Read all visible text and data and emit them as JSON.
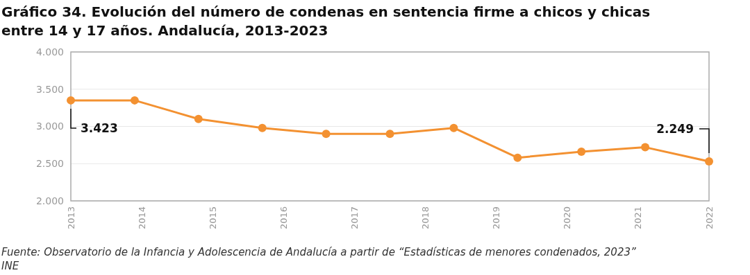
{
  "chart_data": {
    "type": "line",
    "title": "Gráfico 34. Evolución del número de condenas en sentencia firme a chicos y chicas entre 14 y 17 años. Andalucía, 2013-2023",
    "x": [
      2013,
      2013.9,
      2014.8,
      2015.7,
      2016.6,
      2017.5,
      2018.4,
      2019.3,
      2020.2,
      2021.1,
      2022
    ],
    "series": [
      {
        "color": "#f39131",
        "values": [
          3350,
          3350,
          3100,
          2980,
          2900,
          2900,
          2980,
          2580,
          2660,
          2720,
          2530
        ]
      }
    ],
    "xlim": [
      2013,
      2022
    ],
    "xticks": [
      2013,
      2014,
      2015,
      2016,
      2017,
      2018,
      2019,
      2020,
      2021,
      2022
    ],
    "ylim": [
      2000,
      4000
    ],
    "yticks": [
      {
        "value": 2000,
        "label": "2.000"
      },
      {
        "value": 2500,
        "label": "2.500"
      },
      {
        "value": 3000,
        "label": "3.000"
      },
      {
        "value": 3500,
        "label": "3.500"
      },
      {
        "value": 4000,
        "label": "4.000"
      }
    ],
    "grid": "y",
    "marker": "circle",
    "line_style": "solid",
    "annotations": [
      "3.423",
      "2.249",
      "Fuente: Observatorio de la Infancia y Adolescencia de Andalucía a partir de “Estadísticas de menores condenados, 2023” INE"
    ]
  }
}
